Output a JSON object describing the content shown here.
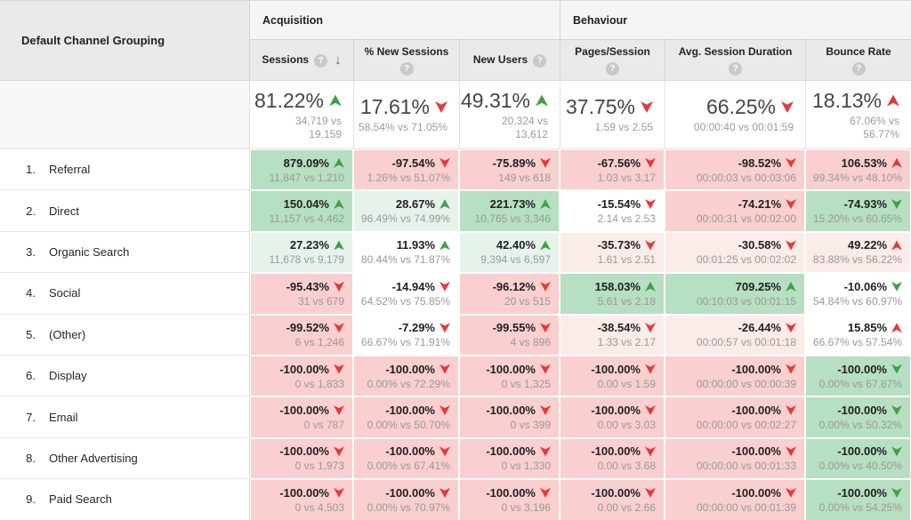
{
  "colors": {
    "positive_green": "#43a047",
    "negative_red": "#e53935",
    "tone_strong_green": "#b7dfc1",
    "tone_light_green": "#e6f3ea",
    "tone_strong_red": "#f9cfcf",
    "tone_light_red": "#fbebe9"
  },
  "table": {
    "dimension_header": "Default Channel Grouping",
    "groups": [
      {
        "label": "Acquisition"
      },
      {
        "label": "Behaviour"
      }
    ],
    "columns": [
      {
        "label": "Sessions",
        "help_icon": "?",
        "sort_arrow": "↓"
      },
      {
        "label": "% New Sessions",
        "help_icon": "?"
      },
      {
        "label": "New Users",
        "help_icon": "?"
      },
      {
        "label": "Pages/Session",
        "help_icon": "?"
      },
      {
        "label": "Avg. Session Duration",
        "help_icon": "?"
      },
      {
        "label": "Bounce Rate",
        "help_icon": "?"
      }
    ],
    "summary": [
      {
        "pct": "81.22%",
        "arrow": "up-green",
        "sub": "34,719 vs 19,159"
      },
      {
        "pct": "17.61%",
        "arrow": "down-red",
        "sub": "58.54% vs 71.05%"
      },
      {
        "pct": "49.31%",
        "arrow": "up-green",
        "sub": "20,324 vs 13,612"
      },
      {
        "pct": "37.75%",
        "arrow": "down-red",
        "sub": "1.59 vs 2.55"
      },
      {
        "pct": "66.25%",
        "arrow": "down-red",
        "sub": "00:00:40 vs 00:01:59"
      },
      {
        "pct": "18.13%",
        "arrow": "up-red",
        "sub": "67.06% vs 56.77%"
      }
    ],
    "rows": [
      {
        "num": "1.",
        "label": "Referral",
        "cells": [
          {
            "pct": "879.09%",
            "arrow": "up-green",
            "tone": "g3",
            "sub": "11,847 vs 1,210"
          },
          {
            "pct": "-97.54%",
            "arrow": "down-red",
            "tone": "r3",
            "sub": "1.26% vs 51.07%"
          },
          {
            "pct": "-75.89%",
            "arrow": "down-red",
            "tone": "r3",
            "sub": "149 vs 618"
          },
          {
            "pct": "-67.56%",
            "arrow": "down-red",
            "tone": "r3",
            "sub": "1.03 vs 3.17"
          },
          {
            "pct": "-98.52%",
            "arrow": "down-red",
            "tone": "r3",
            "sub": "00:00:03 vs 00:03:06"
          },
          {
            "pct": "106.53%",
            "arrow": "up-red",
            "tone": "r3",
            "sub": "99.34% vs 48.10%"
          }
        ]
      },
      {
        "num": "2.",
        "label": "Direct",
        "cells": [
          {
            "pct": "150.04%",
            "arrow": "up-green",
            "tone": "g3",
            "sub": "11,157 vs 4,462"
          },
          {
            "pct": "28.67%",
            "arrow": "up-green",
            "tone": "g1",
            "sub": "96.49% vs 74.99%"
          },
          {
            "pct": "221.73%",
            "arrow": "up-green",
            "tone": "g3",
            "sub": "10,765 vs 3,346"
          },
          {
            "pct": "-15.54%",
            "arrow": "down-red",
            "tone": "w",
            "sub": "2.14 vs 2.53"
          },
          {
            "pct": "-74.21%",
            "arrow": "down-red",
            "tone": "r3",
            "sub": "00:00:31 vs 00:02:00"
          },
          {
            "pct": "-74.93%",
            "arrow": "down-green",
            "tone": "g3",
            "sub": "15.20% vs 60.65%"
          }
        ]
      },
      {
        "num": "3.",
        "label": "Organic Search",
        "cells": [
          {
            "pct": "27.23%",
            "arrow": "up-green",
            "tone": "g1",
            "sub": "11,678 vs 9,179"
          },
          {
            "pct": "11.93%",
            "arrow": "up-green",
            "tone": "w",
            "sub": "80.44% vs 71.87%"
          },
          {
            "pct": "42.40%",
            "arrow": "up-green",
            "tone": "g1",
            "sub": "9,394 vs 6,597"
          },
          {
            "pct": "-35.73%",
            "arrow": "down-red",
            "tone": "r1",
            "sub": "1.61 vs 2.51"
          },
          {
            "pct": "-30.58%",
            "arrow": "down-red",
            "tone": "r1",
            "sub": "00:01:25 vs 00:02:02"
          },
          {
            "pct": "49.22%",
            "arrow": "up-red",
            "tone": "r1",
            "sub": "83.88% vs 56.22%"
          }
        ]
      },
      {
        "num": "4.",
        "label": "Social",
        "cells": [
          {
            "pct": "-95.43%",
            "arrow": "down-red",
            "tone": "r3",
            "sub": "31 vs 679"
          },
          {
            "pct": "-14.94%",
            "arrow": "down-red",
            "tone": "w",
            "sub": "64.52% vs 75.85%"
          },
          {
            "pct": "-96.12%",
            "arrow": "down-red",
            "tone": "r3",
            "sub": "20 vs 515"
          },
          {
            "pct": "158.03%",
            "arrow": "up-green",
            "tone": "g3",
            "sub": "5.61 vs 2.18"
          },
          {
            "pct": "709.25%",
            "arrow": "up-green",
            "tone": "g3",
            "sub": "00:10:03 vs 00:01:15"
          },
          {
            "pct": "-10.06%",
            "arrow": "down-green",
            "tone": "w",
            "sub": "54.84% vs 60.97%"
          }
        ]
      },
      {
        "num": "5.",
        "label": "(Other)",
        "cells": [
          {
            "pct": "-99.52%",
            "arrow": "down-red",
            "tone": "r3",
            "sub": "6 vs 1,246"
          },
          {
            "pct": "-7.29%",
            "arrow": "down-red",
            "tone": "w",
            "sub": "66.67% vs 71.91%"
          },
          {
            "pct": "-99.55%",
            "arrow": "down-red",
            "tone": "r3",
            "sub": "4 vs 896"
          },
          {
            "pct": "-38.54%",
            "arrow": "down-red",
            "tone": "r1",
            "sub": "1.33 vs 2.17"
          },
          {
            "pct": "-26.44%",
            "arrow": "down-red",
            "tone": "r1",
            "sub": "00:00:57 vs 00:01:18"
          },
          {
            "pct": "15.85%",
            "arrow": "up-red",
            "tone": "w",
            "sub": "66.67% vs 57.54%"
          }
        ]
      },
      {
        "num": "6.",
        "label": "Display",
        "cells": [
          {
            "pct": "-100.00%",
            "arrow": "down-red",
            "tone": "r3",
            "sub": "0 vs 1,833"
          },
          {
            "pct": "-100.00%",
            "arrow": "down-red",
            "tone": "r3",
            "sub": "0.00% vs 72.29%"
          },
          {
            "pct": "-100.00%",
            "arrow": "down-red",
            "tone": "r3",
            "sub": "0 vs 1,325"
          },
          {
            "pct": "-100.00%",
            "arrow": "down-red",
            "tone": "r3",
            "sub": "0.00 vs 1.59"
          },
          {
            "pct": "-100.00%",
            "arrow": "down-red",
            "tone": "r3",
            "sub": "00:00:00 vs 00:00:39"
          },
          {
            "pct": "-100.00%",
            "arrow": "down-green",
            "tone": "g3",
            "sub": "0.00% vs 67.87%"
          }
        ]
      },
      {
        "num": "7.",
        "label": "Email",
        "cells": [
          {
            "pct": "-100.00%",
            "arrow": "down-red",
            "tone": "r3",
            "sub": "0 vs 787"
          },
          {
            "pct": "-100.00%",
            "arrow": "down-red",
            "tone": "r3",
            "sub": "0.00% vs 50.70%"
          },
          {
            "pct": "-100.00%",
            "arrow": "down-red",
            "tone": "r3",
            "sub": "0 vs 399"
          },
          {
            "pct": "-100.00%",
            "arrow": "down-red",
            "tone": "r3",
            "sub": "0.00 vs 3.03"
          },
          {
            "pct": "-100.00%",
            "arrow": "down-red",
            "tone": "r3",
            "sub": "00:00:00 vs 00:02:27"
          },
          {
            "pct": "-100.00%",
            "arrow": "down-green",
            "tone": "g3",
            "sub": "0.00% vs 50.32%"
          }
        ]
      },
      {
        "num": "8.",
        "label": "Other Advertising",
        "cells": [
          {
            "pct": "-100.00%",
            "arrow": "down-red",
            "tone": "r3",
            "sub": "0 vs 1,973"
          },
          {
            "pct": "-100.00%",
            "arrow": "down-red",
            "tone": "r3",
            "sub": "0.00% vs 67.41%"
          },
          {
            "pct": "-100.00%",
            "arrow": "down-red",
            "tone": "r3",
            "sub": "0 vs 1,330"
          },
          {
            "pct": "-100.00%",
            "arrow": "down-red",
            "tone": "r3",
            "sub": "0.00 vs 3.68"
          },
          {
            "pct": "-100.00%",
            "arrow": "down-red",
            "tone": "r3",
            "sub": "00:00:00 vs 00:01:33"
          },
          {
            "pct": "-100.00%",
            "arrow": "down-green",
            "tone": "g3",
            "sub": "0.00% vs 40.50%"
          }
        ]
      },
      {
        "num": "9.",
        "label": "Paid Search",
        "cells": [
          {
            "pct": "-100.00%",
            "arrow": "down-red",
            "tone": "r3",
            "sub": "0 vs 4,503"
          },
          {
            "pct": "-100.00%",
            "arrow": "down-red",
            "tone": "r3",
            "sub": "0.00% vs 70.97%"
          },
          {
            "pct": "-100.00%",
            "arrow": "down-red",
            "tone": "r3",
            "sub": "0 vs 3,196"
          },
          {
            "pct": "-100.00%",
            "arrow": "down-red",
            "tone": "r3",
            "sub": "0.00 vs 2.66"
          },
          {
            "pct": "-100.00%",
            "arrow": "down-red",
            "tone": "r3",
            "sub": "00:00:00 vs 00:01:39"
          },
          {
            "pct": "-100.00%",
            "arrow": "down-green",
            "tone": "g3",
            "sub": "0.00% vs 54.25%"
          }
        ]
      }
    ]
  }
}
